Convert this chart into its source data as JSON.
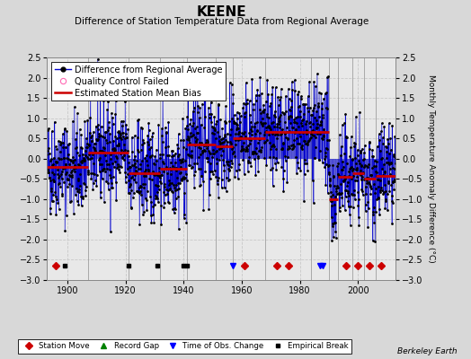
{
  "title": "KEENE",
  "subtitle": "Difference of Station Temperature Data from Regional Average",
  "ylabel_right": "Monthly Temperature Anomaly Difference (°C)",
  "ylim": [
    -3,
    2.5
  ],
  "yticks": [
    -3,
    -2.5,
    -2,
    -1.5,
    -1,
    -0.5,
    0,
    0.5,
    1,
    1.5,
    2,
    2.5
  ],
  "xlim": [
    1893,
    2013
  ],
  "xticks": [
    1900,
    1920,
    1940,
    1960,
    1980,
    2000
  ],
  "bg_color": "#d8d8d8",
  "plot_bg_color": "#e8e8e8",
  "line_color": "#0000cc",
  "dot_color": "#000000",
  "bias_color": "#cc0000",
  "grid_color": "#c8c8c8",
  "seed": 42,
  "data_start_year": 1893,
  "data_end_year": 2013,
  "bias_segments": [
    {
      "start": 1893,
      "end": 1907,
      "value": -0.2
    },
    {
      "start": 1907,
      "end": 1921,
      "value": 0.15
    },
    {
      "start": 1921,
      "end": 1932,
      "value": -0.35
    },
    {
      "start": 1932,
      "end": 1941,
      "value": -0.25
    },
    {
      "start": 1941,
      "end": 1951,
      "value": 0.35
    },
    {
      "start": 1951,
      "end": 1957,
      "value": 0.3
    },
    {
      "start": 1957,
      "end": 1968,
      "value": 0.5
    },
    {
      "start": 1968,
      "end": 1984,
      "value": 0.65
    },
    {
      "start": 1984,
      "end": 1990,
      "value": 0.65
    },
    {
      "start": 1990,
      "end": 1993,
      "value": -1.0
    },
    {
      "start": 1993,
      "end": 1998,
      "value": -0.45
    },
    {
      "start": 1998,
      "end": 2002,
      "value": -0.35
    },
    {
      "start": 2002,
      "end": 2006,
      "value": -0.5
    },
    {
      "start": 2006,
      "end": 2013,
      "value": -0.42
    }
  ],
  "vertical_lines": [
    1907,
    1921,
    1932,
    1941,
    1951,
    1957,
    1968,
    1984,
    1990,
    1993,
    1998,
    2002,
    2006
  ],
  "vertical_line_color": "#999999",
  "station_moves": [
    1896,
    1961,
    1972,
    1976,
    1996,
    2000,
    2004,
    2008
  ],
  "record_gaps": [],
  "time_obs_changes": [
    1957,
    1987,
    1988
  ],
  "empirical_breaks": [
    1899,
    1921,
    1931,
    1940,
    1941
  ],
  "marker_y": -2.65,
  "berkeley_earth_text": "Berkeley Earth",
  "title_fontsize": 11,
  "subtitle_fontsize": 7.5,
  "tick_fontsize": 7,
  "legend_fontsize": 7,
  "ylabel_fontsize": 6.5,
  "noise_std": 0.6
}
